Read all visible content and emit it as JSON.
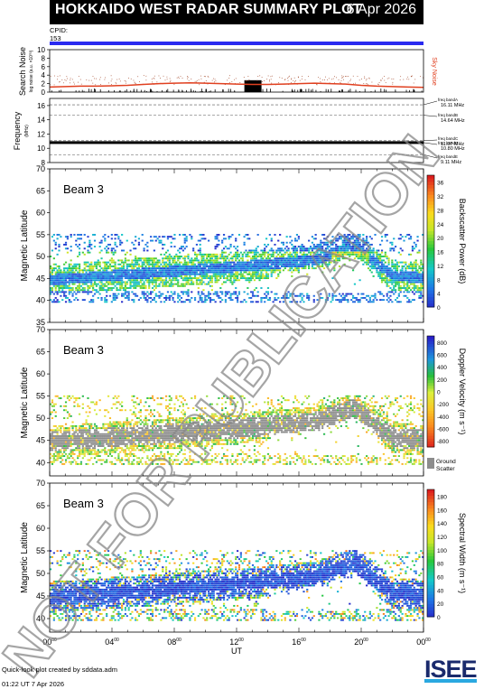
{
  "title": "HOKKAIDO WEST RADAR SUMMARY PLOT",
  "date": "6 Apr 2026",
  "cpid_label": "CPID:",
  "cpid_value": "153",
  "footer_line1": "Quick-look plot created by sddata.adm",
  "footer_line2": "01:22 UT  7 Apr 2026",
  "logo_text": "ISEE",
  "watermark": "NOT FOR PUBLICATION",
  "colors": {
    "cpid_bar": "#2a2af0",
    "noise": "#e04020",
    "sky_label": "#e04020"
  },
  "chart_data": [
    {
      "type": "line",
      "panel": "noise",
      "ylabel": "Search Noise",
      "ylabel_unit": "log noise (a.u. ×10⁰³)",
      "yticks": [
        "0",
        "2",
        "4",
        "6",
        "8",
        "10"
      ],
      "ylim": [
        0,
        10
      ],
      "series_label": "Sky Noise",
      "x": [
        0,
        1,
        2,
        3,
        4,
        5,
        6,
        7,
        8,
        9,
        10,
        11,
        12,
        13,
        14,
        15,
        16,
        17,
        18,
        19,
        20,
        21,
        22,
        23,
        24
      ],
      "values": [
        1.2,
        1.3,
        1.4,
        1.4,
        1.5,
        1.6,
        1.8,
        2.0,
        2.1,
        2.2,
        2.1,
        2.0,
        1.9,
        1.8,
        1.8,
        1.9,
        2.0,
        2.1,
        2.0,
        1.9,
        1.6,
        1.4,
        1.3,
        1.2,
        1.1
      ]
    },
    {
      "type": "line",
      "panel": "frequency",
      "ylabel": "Frequency",
      "ylabel_unit": "(MHz)",
      "yticks": [
        "8",
        "10",
        "12",
        "14",
        "16"
      ],
      "ylim": [
        8,
        17
      ],
      "bands": [
        {
          "name": "freq bandA",
          "mhz": "16.11 MHz",
          "value": 16.11
        },
        {
          "name": "freq bandB",
          "mhz": "14.64 MHz",
          "value": 14.64
        },
        {
          "name": "freq bandC",
          "mhz": "11.07 MHz",
          "value": 11.07
        },
        {
          "name": "freq bandD",
          "mhz": "10.80 MHz",
          "value": 10.8
        },
        {
          "name": "freq bandE",
          "mhz": "9.11 MHz",
          "value": 9.11
        }
      ],
      "operating_value": 10.8
    },
    {
      "type": "heatmap",
      "panel": "power",
      "beam_label": "Beam  3",
      "ylabel": "Magnetic Latitude",
      "yticks": [
        "35",
        "40",
        "45",
        "50",
        "55",
        "60",
        "65",
        "70"
      ],
      "ylim": [
        35,
        70
      ],
      "colorbar_label": "Backscatter Power (dB)",
      "colorbar_ticks": [
        "0",
        "4",
        "8",
        "12",
        "16",
        "20",
        "24",
        "28",
        "32",
        "36"
      ],
      "colorbar_range": [
        0,
        38
      ]
    },
    {
      "type": "heatmap",
      "panel": "velocity",
      "beam_label": "Beam  3",
      "ylabel": "Magnetic Latitude",
      "yticks": [
        "40",
        "45",
        "50",
        "55",
        "60",
        "65",
        "70"
      ],
      "ylim": [
        37,
        70
      ],
      "colorbar_label": "Doppler Velocity (m s⁻¹)",
      "colorbar_ticks": [
        "800",
        "600",
        "400",
        "200",
        "0",
        "-200",
        "-400",
        "-600",
        "-800"
      ],
      "colorbar_range": [
        -900,
        900
      ],
      "ground_label": "Ground Scatter"
    },
    {
      "type": "heatmap",
      "panel": "width",
      "beam_label": "Beam  3",
      "ylabel": "Magnetic Latitude",
      "yticks": [
        "40",
        "45",
        "50",
        "55",
        "60",
        "65",
        "70"
      ],
      "ylim": [
        37,
        70
      ],
      "colorbar_label": "Spectral Width (m s⁻¹)",
      "colorbar_ticks": [
        "0",
        "20",
        "40",
        "60",
        "80",
        "100",
        "120",
        "140",
        "160",
        "180"
      ],
      "colorbar_range": [
        0,
        190
      ]
    }
  ],
  "xaxis": {
    "label": "UT",
    "ticks": [
      "00",
      "04",
      "08",
      "12",
      "16",
      "20",
      "00"
    ],
    "tick_sup": "00",
    "xlim": [
      0,
      24
    ]
  }
}
